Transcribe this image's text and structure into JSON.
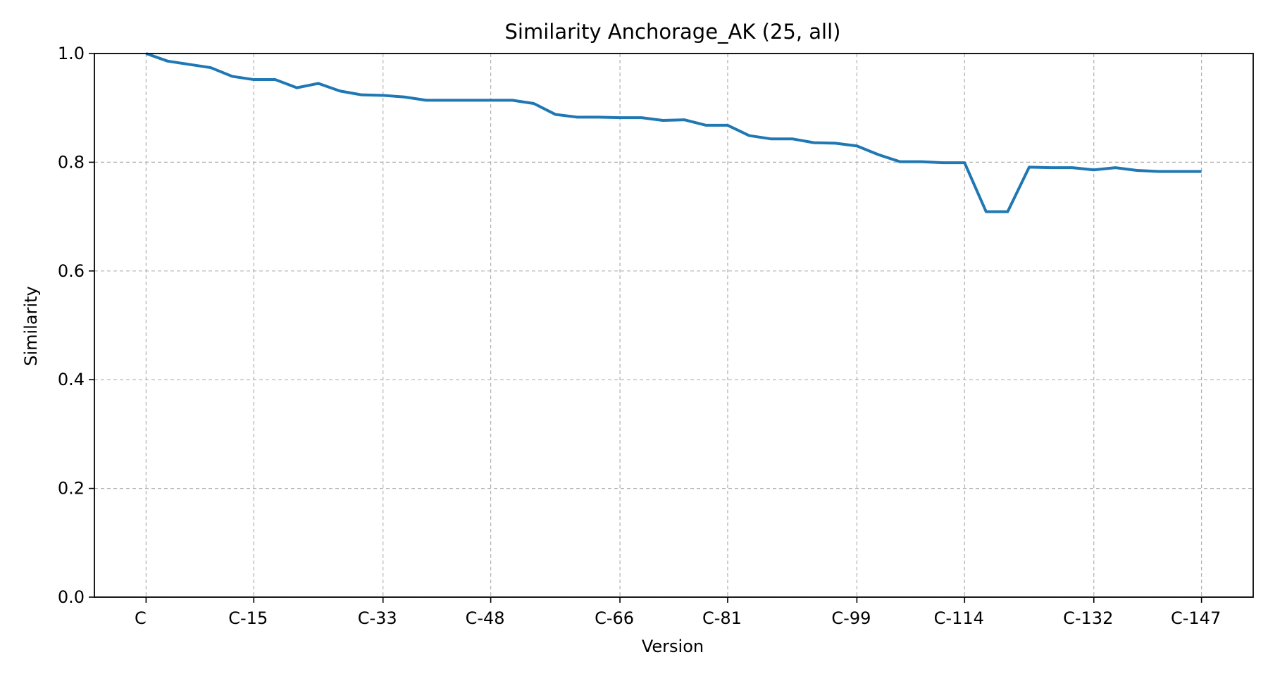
{
  "chart_data": {
    "type": "line",
    "title": "Similarity Anchorage_AK (25, all)",
    "xlabel": "Version",
    "ylabel": "Similarity",
    "ylim": [
      0,
      1.0
    ],
    "yticks": [
      "0.0",
      "0.2",
      "0.4",
      "0.6",
      "0.8",
      "1.0"
    ],
    "xlim": [
      -2.4,
      51.4
    ],
    "xticks": [
      {
        "pos": 0,
        "label": "C"
      },
      {
        "pos": 5,
        "label": "C-15"
      },
      {
        "pos": 11,
        "label": "C-33"
      },
      {
        "pos": 16,
        "label": "C-48"
      },
      {
        "pos": 22,
        "label": "C-66"
      },
      {
        "pos": 27,
        "label": "C-81"
      },
      {
        "pos": 33,
        "label": "C-99"
      },
      {
        "pos": 38,
        "label": "C-114"
      },
      {
        "pos": 44,
        "label": "C-132"
      },
      {
        "pos": 49,
        "label": "C-147"
      }
    ],
    "grid": true,
    "series": [
      {
        "color": "#1f77b4",
        "x": [
          0,
          1,
          2,
          3,
          4,
          5,
          6,
          7,
          8,
          9,
          10,
          11,
          12,
          13,
          14,
          15,
          16,
          17,
          18,
          19,
          20,
          21,
          22,
          23,
          24,
          25,
          26,
          27,
          28,
          29,
          30,
          31,
          32,
          33,
          34,
          35,
          36,
          37,
          38,
          39,
          40,
          41,
          42,
          43,
          44,
          45,
          46,
          47,
          48,
          49
        ],
        "values": [
          1.0,
          0.986,
          0.98,
          0.974,
          0.958,
          0.952,
          0.952,
          0.937,
          0.945,
          0.931,
          0.924,
          0.923,
          0.92,
          0.914,
          0.914,
          0.914,
          0.914,
          0.914,
          0.908,
          0.888,
          0.883,
          0.883,
          0.882,
          0.882,
          0.877,
          0.878,
          0.868,
          0.868,
          0.849,
          0.843,
          0.843,
          0.836,
          0.835,
          0.83,
          0.814,
          0.801,
          0.801,
          0.799,
          0.799,
          0.709,
          0.709,
          0.791,
          0.79,
          0.79,
          0.786,
          0.79,
          0.785,
          0.783,
          0.783,
          0.783
        ]
      }
    ]
  }
}
